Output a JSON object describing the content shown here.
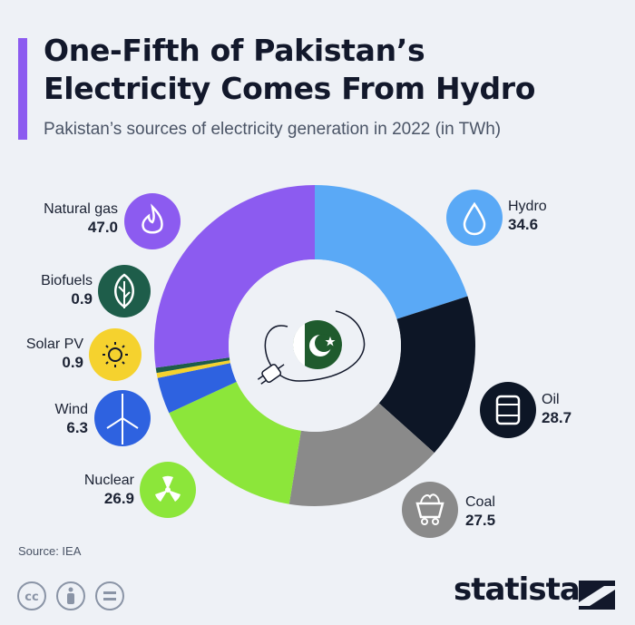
{
  "header": {
    "title_line1": "One-Fifth of Pakistan’s",
    "title_line2": "Electricity Comes From Hydro",
    "subtitle": "Pakistan’s sources of electricity generation in 2022 (in TWh)"
  },
  "chart_data": {
    "type": "pie",
    "donut": true,
    "series": [
      {
        "name": "Hydro",
        "value": 34.6,
        "value_label": "34.6",
        "color": "#5aa9f6",
        "icon": "water-drop-icon"
      },
      {
        "name": "Oil",
        "value": 28.7,
        "value_label": "28.7",
        "color": "#0d1626",
        "icon": "oil-barrel-icon"
      },
      {
        "name": "Coal",
        "value": 27.5,
        "value_label": "27.5",
        "color": "#8a8a8a",
        "icon": "coal-cart-icon"
      },
      {
        "name": "Nuclear",
        "value": 26.9,
        "value_label": "26.9",
        "color": "#8ce63a",
        "icon": "radiation-icon"
      },
      {
        "name": "Wind",
        "value": 6.3,
        "value_label": "6.3",
        "color": "#2e62e0",
        "icon": "wind-turbine-icon"
      },
      {
        "name": "Solar PV",
        "value": 0.9,
        "value_label": "0.9",
        "color": "#f5d22e",
        "icon": "sun-icon"
      },
      {
        "name": "Biofuels",
        "value": 0.9,
        "value_label": "0.9",
        "color": "#1e5d4a",
        "icon": "leaf-icon"
      },
      {
        "name": "Natural gas",
        "value": 47.0,
        "value_label": "47.0",
        "color": "#8c5bf0",
        "icon": "flame-icon"
      }
    ],
    "start": "12 o'clock",
    "direction": "clockwise",
    "center_icon": "pakistan-flag-plug-icon"
  },
  "footer": {
    "source": "Source: IEA",
    "brand": "statista",
    "license_icons": [
      "cc-icon",
      "attribution-icon",
      "no-derivatives-icon"
    ]
  }
}
